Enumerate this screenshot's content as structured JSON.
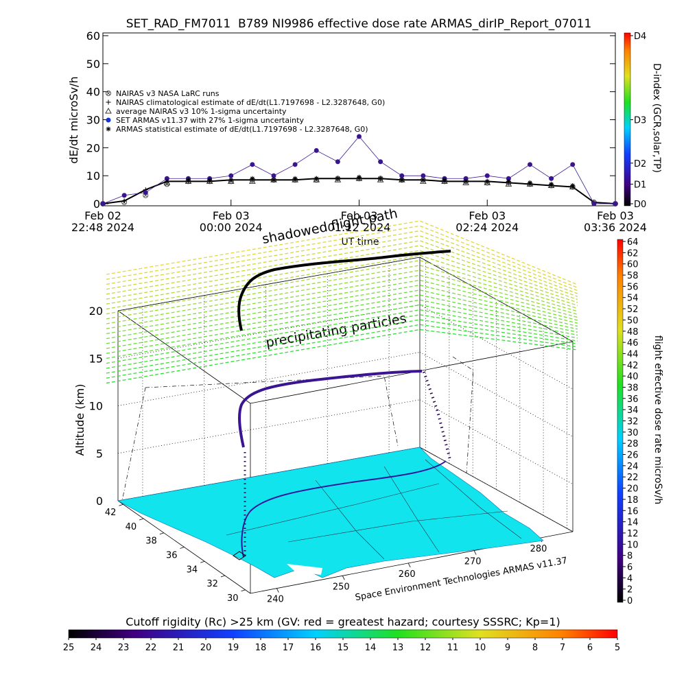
{
  "chart_data": [
    {
      "type": "line",
      "title": "SET_RAD_FM7011  B789 NI9986 effective dose rate ARMAS_dirIP_Report_07011",
      "ylabel": "dE/dt microSv/h",
      "xlabel": "UT time",
      "x": [
        "2024-02-02T22:48",
        "2024-02-02T23:00",
        "2024-02-02T23:12",
        "2024-02-02T23:24",
        "2024-02-02T23:36",
        "2024-02-02T23:48",
        "2024-02-03T00:00",
        "2024-02-03T00:12",
        "2024-02-03T00:24",
        "2024-02-03T00:36",
        "2024-02-03T00:48",
        "2024-02-03T01:00",
        "2024-02-03T01:12",
        "2024-02-03T01:24",
        "2024-02-03T01:36",
        "2024-02-03T01:48",
        "2024-02-03T02:00",
        "2024-02-03T02:12",
        "2024-02-03T02:24",
        "2024-02-03T02:36",
        "2024-02-03T02:48",
        "2024-02-03T03:00",
        "2024-02-03T03:12",
        "2024-02-03T03:24",
        "2024-02-03T03:36"
      ],
      "xlim": [
        "2024-02-02T22:48",
        "2024-02-03T03:36"
      ],
      "xticks": [
        {
          "value": "2024-02-02T22:48",
          "label": "Feb 02\n22:48 2024"
        },
        {
          "value": "2024-02-03T00:00",
          "label": "Feb 03\n00:00 2024"
        },
        {
          "value": "2024-02-03T01:12",
          "label": "Feb 03\n01:12 2024"
        },
        {
          "value": "2024-02-03T02:24",
          "label": "Feb 03\n02:24 2024"
        },
        {
          "value": "2024-02-03T03:36",
          "label": "Feb 03\n03:36 2024"
        }
      ],
      "ylim": [
        0,
        60
      ],
      "yticks": [
        0,
        10,
        20,
        30,
        40,
        50,
        60
      ],
      "y2label": "D-index (GCR,solar,TP)",
      "y2lim": [
        0,
        60
      ],
      "y2ticks": [
        {
          "value": 0,
          "label": "D0"
        },
        {
          "value": 7,
          "label": "D1"
        },
        {
          "value": 14.5,
          "label": "D2"
        },
        {
          "value": 30,
          "label": "D3"
        },
        {
          "value": 60,
          "label": "D4"
        }
      ],
      "legend": "upper left",
      "series": [
        {
          "name": "NAIRAS v3 NASA LaRC runs",
          "marker": "circle-x",
          "line": false,
          "color": "#555555",
          "values": [
            0,
            0.5,
            3,
            7,
            8,
            8,
            8,
            8.5,
            8.5,
            8.5,
            8.5,
            9,
            9,
            9,
            8.5,
            8.5,
            8,
            8,
            7.5,
            7.5,
            7,
            6.5,
            6,
            0.5,
            0
          ]
        },
        {
          "name": "NAIRAS climatological estimate of dE/dt(L1.7197698 - L2.3287648, G0)",
          "marker": "plus",
          "line": true,
          "color": "#000000",
          "values": [
            0,
            1,
            5,
            8,
            8,
            8,
            8.5,
            8.5,
            8.5,
            8.5,
            9,
            9,
            9,
            9,
            8.5,
            8.5,
            8,
            8,
            8,
            7.5,
            7,
            6.5,
            6,
            0.5,
            0
          ]
        },
        {
          "name": "average NAIRAS v3 10% 1-sigma uncertainty",
          "marker": "triangle",
          "line": false,
          "color": "#333333",
          "values": [
            null,
            null,
            null,
            7.5,
            8,
            8,
            8,
            8,
            8.5,
            8.5,
            8.5,
            8.5,
            9,
            8.5,
            8.5,
            8,
            8,
            7.5,
            7.5,
            7,
            7,
            6.5,
            6,
            null,
            null
          ]
        },
        {
          "name": "SET ARMAS v11.37 with 27% 1-sigma uncertainty",
          "marker": "dot",
          "line": true,
          "color": "#3b1591",
          "values": [
            0,
            3,
            4,
            9,
            9,
            9,
            10,
            14,
            10,
            14,
            19,
            15,
            24,
            15,
            10,
            10,
            9,
            9,
            10,
            9,
            14,
            9,
            14,
            0,
            0
          ]
        },
        {
          "name": "ARMAS statistical estimate of dE/dt(L1.7197698 - L2.3287648, G0)",
          "marker": "star",
          "line": false,
          "color": "#000000",
          "values": [
            null,
            null,
            null,
            8,
            8.5,
            8.5,
            8.5,
            9,
            8.5,
            9,
            9,
            9,
            9.5,
            9,
            8.5,
            8.5,
            8.5,
            8,
            8,
            8,
            7.5,
            7,
            6.5,
            null,
            null
          ]
        }
      ]
    },
    {
      "type": "surface3d",
      "zlabel": "Altitude (km)",
      "zlim": [
        0,
        20
      ],
      "zticks": [
        0,
        5,
        10,
        15,
        20
      ],
      "ylim": [
        42.5,
        29.5
      ],
      "yticks": [
        42,
        40,
        38,
        36,
        34,
        32,
        30
      ],
      "xlim": [
        236,
        285
      ],
      "xticks": [
        240,
        250,
        260,
        270,
        280
      ],
      "annotations": [
        "shadowed flight path",
        "precipitating particles"
      ],
      "credit": "Space Environment Technologies ARMAS v11.37"
    },
    {
      "type": "colorbar",
      "orientation": "vertical",
      "label": "flight effective dose rate microSv/h",
      "lim": [
        0,
        64
      ],
      "ticks": [
        0,
        2,
        4,
        6,
        8,
        10,
        12,
        14,
        16,
        18,
        20,
        22,
        24,
        26,
        28,
        30,
        32,
        34,
        36,
        38,
        40,
        42,
        44,
        46,
        48,
        50,
        52,
        54,
        56,
        58,
        60,
        62,
        64
      ]
    },
    {
      "type": "colorbar",
      "orientation": "horizontal",
      "title": "Cutoff rigidity (Rc) >25 km (GV: red = greatest hazard; courtesy SSSRC; Kp=1)",
      "lim": [
        25,
        5
      ],
      "ticks": [
        25,
        24,
        23,
        22,
        21,
        20,
        19,
        18,
        17,
        16,
        15,
        14,
        13,
        12,
        11,
        10,
        9,
        8,
        7,
        6,
        5
      ]
    }
  ]
}
